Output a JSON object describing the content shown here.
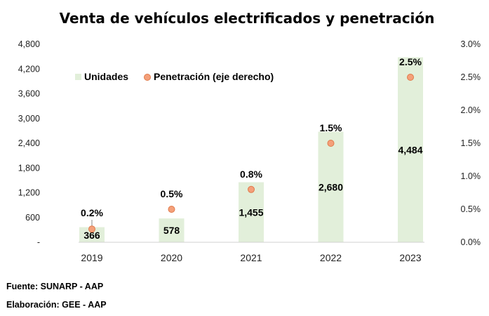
{
  "chart_data": {
    "type": "bar",
    "title": "Venta de vehículos electrificados y penetración",
    "categories": [
      "2019",
      "2020",
      "2021",
      "2022",
      "2023"
    ],
    "series": [
      {
        "name": "Unidades",
        "type": "bar",
        "axis": "left",
        "color": "#e2efda",
        "values": [
          366,
          578,
          1455,
          2680,
          4484
        ],
        "labels": [
          "366",
          "578",
          "1,455",
          "2,680",
          "4,484"
        ]
      },
      {
        "name": "Penetración (eje derecho)",
        "type": "scatter",
        "axis": "right",
        "color": "#f4a07a",
        "edge_color": "#e07a4a",
        "values": [
          0.2,
          0.5,
          0.8,
          1.5,
          2.5
        ],
        "labels": [
          "0.2%",
          "0.5%",
          "0.8%",
          "1.5%",
          "2.5%"
        ]
      }
    ],
    "ylim_left": [
      0,
      4800
    ],
    "yticks_left": [
      "-",
      "600",
      "1,200",
      "1,800",
      "2,400",
      "3,000",
      "3,600",
      "4,200",
      "4,800"
    ],
    "ylim_right": [
      0,
      3.0
    ],
    "yticks_right": [
      "0.0%",
      "0.5%",
      "1.0%",
      "1.5%",
      "2.0%",
      "2.5%",
      "3.0%"
    ],
    "xlabel": "",
    "ylabel": "",
    "grid": false,
    "legend": "top-left",
    "legend_labels": [
      "Unidades",
      "Penetración (eje derecho)"
    ]
  },
  "footnotes": {
    "source": "Fuente: SUNARP - AAP",
    "prepared_by": "Elaboración: GEE - AAP"
  }
}
